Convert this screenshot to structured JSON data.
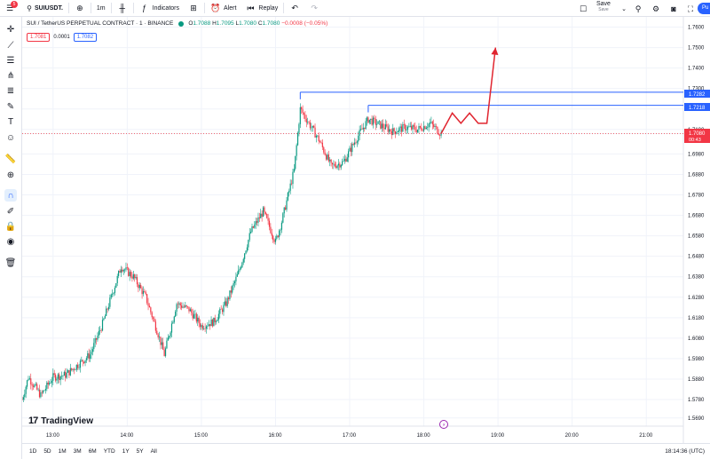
{
  "topbar": {
    "notification_count": "5",
    "symbol": "SUIUSDT.",
    "interval": "1m",
    "indicators_label": "Indicators",
    "alert_label": "Alert",
    "replay_label": "Replay",
    "save_label": "Save",
    "save_sub": "Save",
    "publish_label": "Pu"
  },
  "legend": {
    "title": "SUI / TetherUS PERPETUAL CONTRACT · 1 · BINANCE",
    "o_prefix": "O",
    "o": "1.7088",
    "h_prefix": "H",
    "h": "1.7095",
    "l_prefix": "L",
    "l": "1.7080",
    "c_prefix": "C",
    "c": "1.7080",
    "change": "−0.0008 (−0.05%)",
    "sell_price": "1.7081",
    "spread": "0.0001",
    "buy_price": "1.7082"
  },
  "price_axis": {
    "ticks": [
      "1.7600",
      "1.7500",
      "1.7400",
      "1.7300",
      "1.7200",
      "1.7100",
      "1.7080",
      "1.6980",
      "1.6880",
      "1.6780",
      "1.6680",
      "1.6580",
      "1.6480",
      "1.6380",
      "1.6280",
      "1.6180",
      "1.6080",
      "1.5980",
      "1.5880",
      "1.5780",
      "1.5690"
    ],
    "label_upper": "1.7282",
    "label_lower": "1.7218",
    "label_current": "1.7080",
    "label_countdown": "00:43"
  },
  "time_axis": {
    "ticks": [
      "13:00",
      "14:00",
      "15:00",
      "16:00",
      "17:00",
      "18:00",
      "19:00",
      "20:00",
      "21:00"
    ]
  },
  "bottombar": {
    "ranges": [
      "1D",
      "5D",
      "1M",
      "3M",
      "6M",
      "YTD",
      "1Y",
      "5Y",
      "All"
    ],
    "clock": "18:14:36 (UTC)"
  },
  "logo": {
    "mark": "17",
    "text": "TradingView"
  },
  "colors": {
    "up": "#089981",
    "down": "#f23645",
    "accent": "#2962ff",
    "line_blue": "#2962ff",
    "projection": "#e0242f"
  },
  "chart_data": {
    "type": "candlestick",
    "symbol": "SUI / TetherUS PERPETUAL CONTRACT",
    "interval": "1",
    "exchange": "BINANCE",
    "x_range": [
      "12:35",
      "21:30"
    ],
    "y_range": [
      1.565,
      1.765
    ],
    "horizontal_levels": [
      1.7282,
      1.7218
    ],
    "current_price": 1.708,
    "path_points": [
      [
        "12:35",
        1.578
      ],
      [
        "12:40",
        1.589
      ],
      [
        "12:50",
        1.58
      ],
      [
        "13:00",
        1.589
      ],
      [
        "13:10",
        1.59
      ],
      [
        "13:20",
        1.595
      ],
      [
        "13:30",
        1.6
      ],
      [
        "13:40",
        1.615
      ],
      [
        "13:55",
        1.643
      ],
      [
        "14:05",
        1.638
      ],
      [
        "14:15",
        1.628
      ],
      [
        "14:25",
        1.61
      ],
      [
        "14:30",
        1.6
      ],
      [
        "14:40",
        1.625
      ],
      [
        "14:50",
        1.622
      ],
      [
        "15:00",
        1.614
      ],
      [
        "15:10",
        1.616
      ],
      [
        "15:20",
        1.625
      ],
      [
        "15:30",
        1.64
      ],
      [
        "15:40",
        1.66
      ],
      [
        "15:50",
        1.67
      ],
      [
        "16:00",
        1.655
      ],
      [
        "16:05",
        1.665
      ],
      [
        "16:15",
        1.69
      ],
      [
        "16:20",
        1.72
      ],
      [
        "16:25",
        1.715
      ],
      [
        "16:35",
        1.705
      ],
      [
        "16:45",
        1.692
      ],
      [
        "16:55",
        1.694
      ],
      [
        "17:05",
        1.705
      ],
      [
        "17:15",
        1.715
      ],
      [
        "17:25",
        1.712
      ],
      [
        "17:35",
        1.709
      ],
      [
        "17:45",
        1.711
      ],
      [
        "17:55",
        1.71
      ],
      [
        "18:05",
        1.713
      ],
      [
        "18:14",
        1.708
      ]
    ],
    "projection": [
      [
        "18:14",
        1.708
      ],
      [
        "18:23",
        1.718
      ],
      [
        "18:30",
        1.713
      ],
      [
        "18:37",
        1.718
      ],
      [
        "18:44",
        1.713
      ],
      [
        "18:51",
        1.713
      ],
      [
        "18:58",
        1.75
      ]
    ],
    "anomalies": []
  }
}
